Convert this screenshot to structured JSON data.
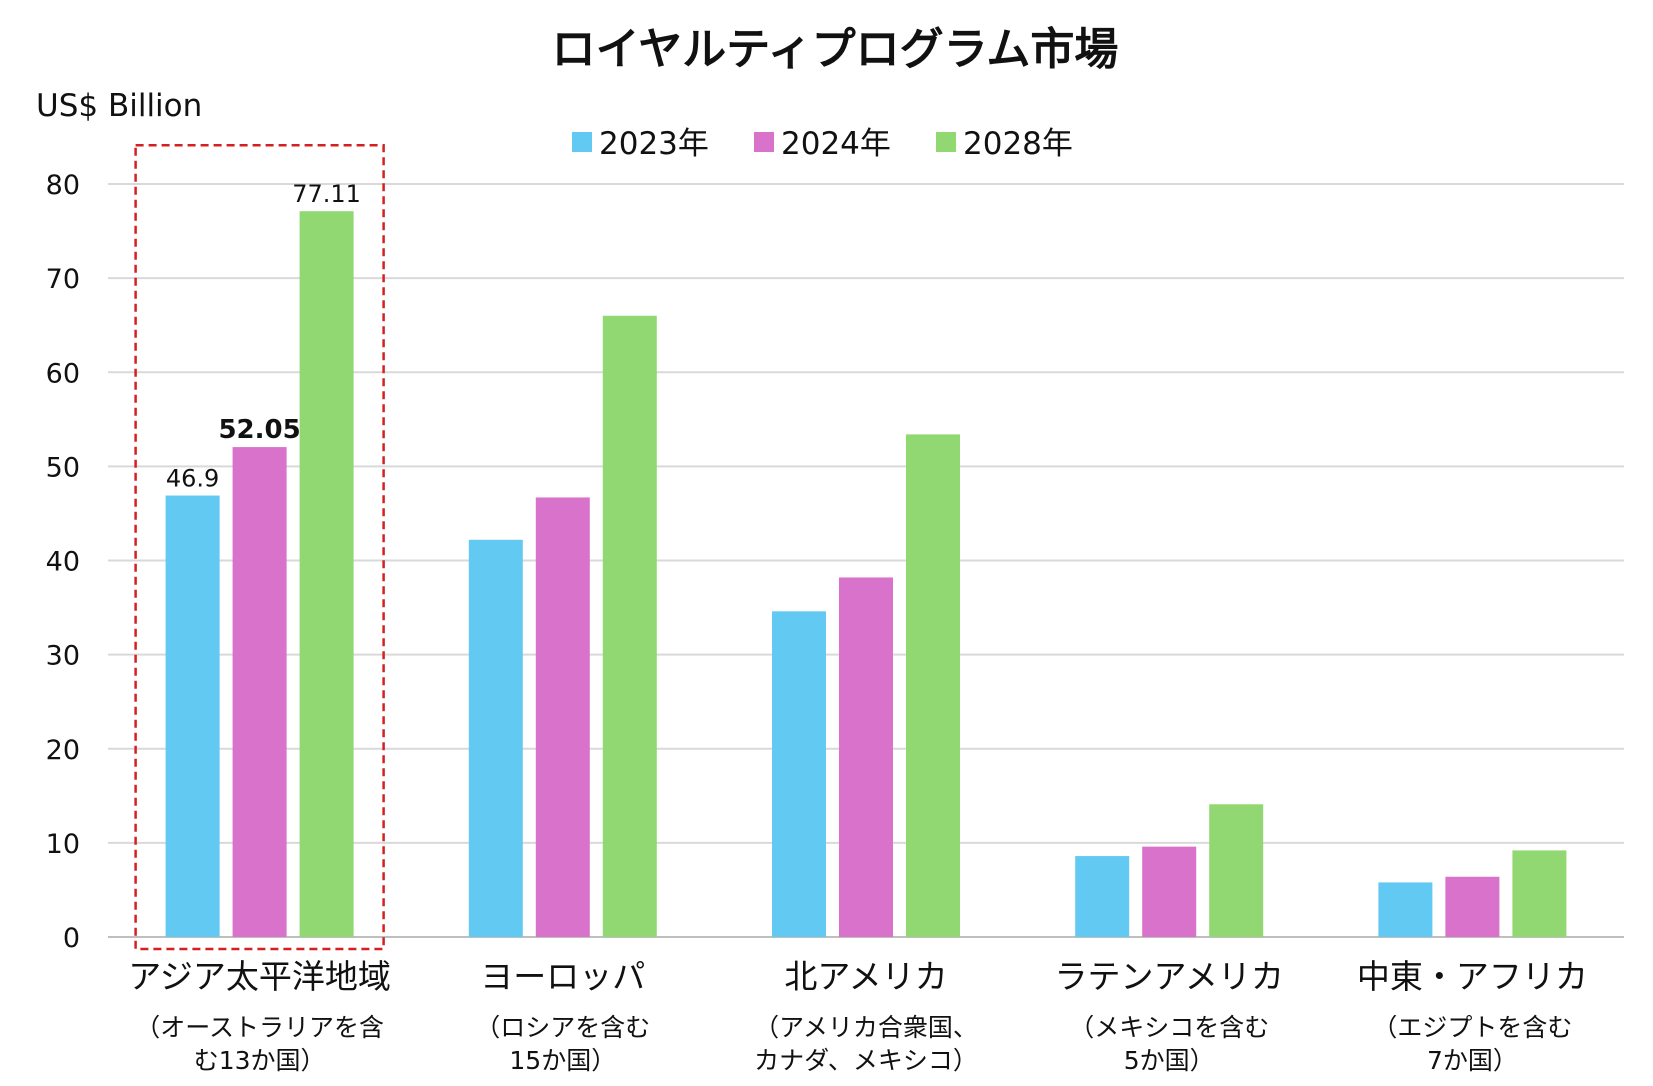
{
  "chart_data": {
    "type": "bar",
    "title": "ロイヤルティプログラム市場",
    "ylabel": "US$ Billion",
    "xlabel": "",
    "ylim": [
      0,
      80
    ],
    "yticks": [
      0,
      10,
      20,
      30,
      40,
      50,
      60,
      70,
      80
    ],
    "grid": true,
    "legend_position": "top-center",
    "categories": [
      {
        "name": "アジア太平洋地域",
        "note_lines": [
          "（オーストラリアを含",
          "む13か国）"
        ]
      },
      {
        "name": "ヨーロッパ",
        "note_lines": [
          "（ロシアを含む",
          "15か国）"
        ]
      },
      {
        "name": "北アメリカ",
        "note_lines": [
          "（アメリカ合衆国、",
          "カナダ、メキシコ）"
        ]
      },
      {
        "name": "ラテンアメリカ",
        "note_lines": [
          "（メキシコを含む",
          "5か国）"
        ]
      },
      {
        "name": "中東・アフリカ",
        "note_lines": [
          "（エジプトを含む",
          "7か国）"
        ]
      }
    ],
    "series": [
      {
        "name": "2023年",
        "color": "#62C9F2",
        "values": [
          46.9,
          42.2,
          34.6,
          8.6,
          5.8
        ]
      },
      {
        "name": "2024年",
        "color": "#D872CB",
        "values": [
          52.05,
          46.7,
          38.2,
          9.6,
          6.4
        ]
      },
      {
        "name": "2028年",
        "color": "#92D872",
        "values": [
          77.11,
          66.0,
          53.4,
          14.1,
          9.2
        ]
      }
    ],
    "data_labels": [
      {
        "series": 0,
        "category": 0,
        "text": "46.9",
        "bold": false
      },
      {
        "series": 1,
        "category": 0,
        "text": "52.05",
        "bold": true
      },
      {
        "series": 2,
        "category": 0,
        "text": "77.11",
        "bold": false
      }
    ],
    "highlight": {
      "category": 0,
      "style": "red-dashed-box",
      "color": "#D42020"
    },
    "grid_color": "#D9D9D9",
    "axis_color": "#BFBFBF"
  }
}
